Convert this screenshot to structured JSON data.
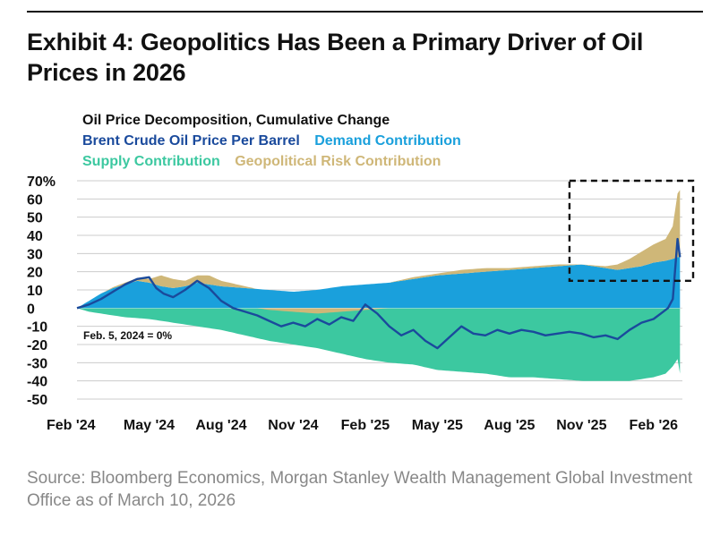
{
  "header": {
    "title": "Exhibit 4: Geopolitics Has Been a Primary Driver of Oil Prices in 2026"
  },
  "legend": {
    "title": "Oil Price Decomposition, Cumulative Change",
    "brent": "Brent Crude Oil Price Per Barrel",
    "demand": "Demand Contribution",
    "supply": "Supply Contribution",
    "geo": "Geopolitical Risk Contribution"
  },
  "annotation": "Feb. 5, 2024 = 0%",
  "source": "Source: Bloomberg Economics, Morgan Stanley Wealth Management Global Investment Office as of March 10, 2026",
  "colors": {
    "brent": "#1a4a9c",
    "demand": "#1aa0dc",
    "supply": "#3cc8a0",
    "geo": "#cfb778",
    "grid": "#cccccc"
  },
  "chart_data": {
    "type": "area",
    "title": "Oil Price Decomposition, Cumulative Change",
    "ylim": [
      -50,
      70
    ],
    "yticks": [
      "70%",
      "60",
      "50",
      "40",
      "30",
      "20",
      "10",
      "0",
      "-10",
      "-20",
      "-30",
      "-40",
      "-50"
    ],
    "ytick_values": [
      70,
      60,
      50,
      40,
      30,
      20,
      10,
      0,
      -10,
      -20,
      -30,
      -40,
      -50
    ],
    "xlim": [
      0,
      25.2
    ],
    "xticks": [
      "Feb '24",
      "May '24",
      "Aug '24",
      "Nov '24",
      "Feb '25",
      "May '25",
      "Aug '25",
      "Nov '25",
      "Feb '26"
    ],
    "xtick_values": [
      0,
      3,
      6,
      9,
      12,
      15,
      18,
      21,
      24
    ],
    "x_unit": "months since Feb 5, 2024",
    "highlight_box": {
      "x": [
        20.5,
        25.2
      ],
      "y": [
        15,
        70
      ]
    },
    "series": [
      {
        "name": "Demand Contribution",
        "x": [
          0,
          0.5,
          1,
          1.5,
          2,
          2.5,
          3,
          3.5,
          4,
          4.5,
          5,
          5.5,
          6,
          7,
          8,
          9,
          10,
          11,
          12,
          13,
          14,
          15,
          16,
          17,
          18,
          19,
          20,
          21,
          22,
          22.5,
          23,
          23.5,
          24,
          24.5,
          24.8,
          25.0,
          25.1
        ],
        "values": [
          0,
          4,
          8,
          11,
          13,
          15,
          14,
          12,
          11,
          12,
          14,
          13,
          12,
          11,
          10,
          9,
          10,
          12,
          13,
          14,
          16,
          18,
          19,
          20,
          21,
          22,
          23,
          24,
          22,
          21,
          22,
          23,
          25,
          26,
          27,
          28,
          28
        ]
      },
      {
        "name": "Geopolitical Risk Contribution",
        "x": [
          0,
          1,
          2,
          3,
          3.5,
          4,
          4.5,
          5,
          5.5,
          6,
          7,
          8,
          9,
          10,
          11,
          12,
          13,
          14,
          15,
          16,
          17,
          18,
          19,
          20,
          21,
          22,
          22.5,
          23,
          23.5,
          24,
          24.5,
          24.8,
          25.0,
          25.1
        ],
        "values": [
          0,
          0,
          1,
          2,
          6,
          5,
          3,
          4,
          5,
          3,
          1,
          -1,
          -2,
          -3,
          -2,
          -1,
          0,
          1,
          1,
          2,
          2,
          1,
          1,
          1,
          0,
          1,
          3,
          5,
          8,
          10,
          12,
          18,
          35,
          37
        ]
      },
      {
        "name": "Supply Contribution",
        "x": [
          0,
          0.5,
          1,
          2,
          3,
          4,
          5,
          6,
          7,
          8,
          9,
          10,
          11,
          12,
          13,
          14,
          15,
          16,
          17,
          18,
          19,
          20,
          21,
          22,
          23,
          24,
          24.5,
          24.8,
          25.0,
          25.1
        ],
        "values": [
          0,
          -2,
          -3,
          -5,
          -6,
          -8,
          -10,
          -12,
          -15,
          -18,
          -20,
          -22,
          -25,
          -28,
          -30,
          -31,
          -34,
          -35,
          -36,
          -38,
          -38,
          -39,
          -40,
          -40,
          -40,
          -38,
          -36,
          -32,
          -28,
          -36
        ]
      },
      {
        "name": "Brent Crude Oil Price Per Barrel",
        "x": [
          0,
          0.5,
          1,
          1.5,
          2,
          2.5,
          3,
          3.3,
          3.6,
          4,
          4.5,
          5,
          5.5,
          6,
          6.5,
          7,
          7.5,
          8,
          8.5,
          9,
          9.5,
          10,
          10.5,
          11,
          11.5,
          12,
          12.5,
          13,
          13.5,
          14,
          14.5,
          15,
          15.5,
          16,
          16.5,
          17,
          17.5,
          18,
          18.5,
          19,
          19.5,
          20,
          20.5,
          21,
          21.5,
          22,
          22.5,
          23,
          23.5,
          24,
          24.3,
          24.6,
          24.8,
          25.0,
          25.1
        ],
        "values": [
          0,
          2,
          5,
          9,
          13,
          16,
          17,
          11,
          8,
          6,
          10,
          15,
          11,
          4,
          0,
          -2,
          -4,
          -7,
          -10,
          -8,
          -10,
          -6,
          -9,
          -5,
          -7,
          2,
          -3,
          -10,
          -15,
          -12,
          -18,
          -22,
          -16,
          -10,
          -14,
          -15,
          -12,
          -14,
          -12,
          -13,
          -15,
          -14,
          -13,
          -14,
          -16,
          -15,
          -17,
          -12,
          -8,
          -6,
          -3,
          0,
          5,
          38,
          28
        ]
      }
    ]
  }
}
